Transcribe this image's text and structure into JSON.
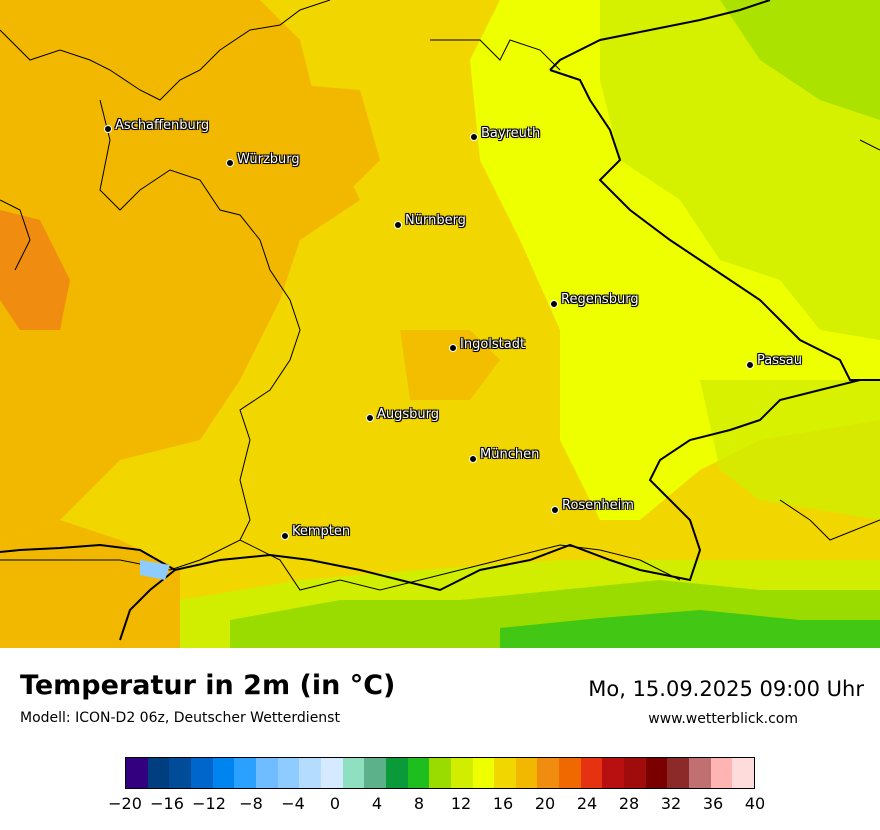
{
  "map": {
    "cities": [
      {
        "name": "Aschaffenburg"
      },
      {
        "name": "Würzburg"
      },
      {
        "name": "Bayreuth"
      },
      {
        "name": "Nürnberg"
      },
      {
        "name": "Regensburg"
      },
      {
        "name": "Ingolstadt"
      },
      {
        "name": "Passau"
      },
      {
        "name": "Augsburg"
      },
      {
        "name": "München"
      },
      {
        "name": "Rosenheim"
      },
      {
        "name": "Kempten"
      }
    ]
  },
  "footer": {
    "title": "Temperatur in 2m (in °C)",
    "model": "Modell: ICON-D2 06z, Deutscher Wetterdienst",
    "datetime": "Mo, 15.09.2025 09:00 Uhr",
    "website": "www.wetterblick.com"
  },
  "legend": {
    "colors": [
      "#33007f",
      "#003f7f",
      "#004c99",
      "#0066cc",
      "#0085f0",
      "#2aa0ff",
      "#6fbcff",
      "#8ecbff",
      "#b3dcff",
      "#d5eaff",
      "#8ee0c0",
      "#5cb08a",
      "#0a9a3a",
      "#1ebe1e",
      "#9adc00",
      "#d1ee00",
      "#eeff00",
      "#f2d600",
      "#f2b800",
      "#f08c10",
      "#f06800",
      "#e63210",
      "#b81010",
      "#a00c0c",
      "#7a0000",
      "#8c2a2a",
      "#c07070",
      "#ffb4b4",
      "#ffdcdc"
    ],
    "tick_labels": [
      "−20",
      "−16",
      "−12",
      "−8",
      "−4",
      "0",
      "4",
      "8",
      "12",
      "16",
      "20",
      "24",
      "28",
      "32",
      "36",
      "40"
    ]
  }
}
